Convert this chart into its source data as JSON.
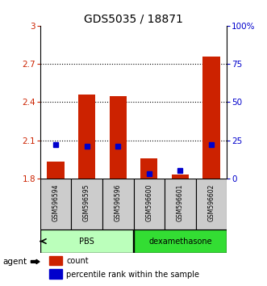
{
  "title": "GDS5035 / 18871",
  "samples": [
    "GSM596594",
    "GSM596595",
    "GSM596596",
    "GSM596600",
    "GSM596601",
    "GSM596602"
  ],
  "red_values": [
    1.93,
    2.46,
    2.45,
    1.96,
    1.83,
    2.76
  ],
  "blue_percentiles": [
    22,
    21,
    21,
    3,
    5,
    22
  ],
  "ymin": 1.8,
  "ymax": 3.0,
  "yticks_left": [
    1.8,
    2.1,
    2.4,
    2.7,
    3.0
  ],
  "ytick_labels_left": [
    "1.8",
    "2.1",
    "2.4",
    "2.7",
    "3"
  ],
  "yticks_right": [
    0,
    25,
    50,
    75,
    100
  ],
  "ytick_labels_right": [
    "0",
    "25",
    "50",
    "75",
    "100%"
  ],
  "dotted_lines": [
    2.1,
    2.4,
    2.7
  ],
  "groups": [
    {
      "label": "PBS",
      "indices": [
        0,
        1,
        2
      ],
      "color": "#bbffbb"
    },
    {
      "label": "dexamethasone",
      "indices": [
        3,
        4,
        5
      ],
      "color": "#33dd33"
    }
  ],
  "group_row_label": "agent",
  "bar_color": "#cc2200",
  "blue_color": "#0000cc",
  "bar_width": 0.55,
  "background_color": "#ffffff",
  "tick_color_left": "#cc2200",
  "tick_color_right": "#0000cc",
  "title_fontsize": 10,
  "legend_items": [
    "count",
    "percentile rank within the sample"
  ],
  "sample_box_color": "#cccccc"
}
